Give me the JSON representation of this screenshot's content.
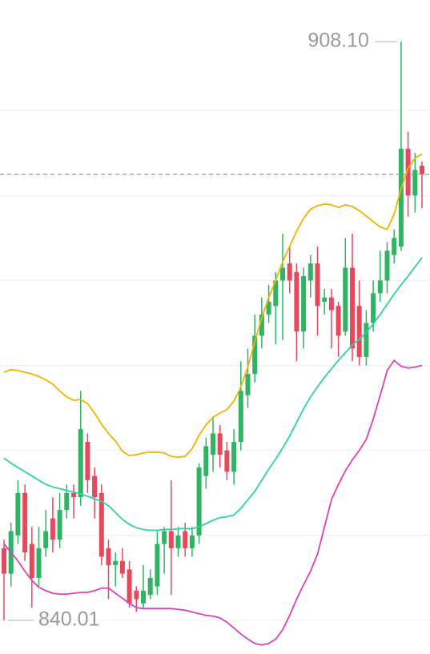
{
  "chart_data": {
    "type": "candlestick",
    "up_color": "#2fb463",
    "down_color": "#e8495a",
    "ylim": [
      836.05,
      913.0
    ],
    "gridlines": [
      840,
      850,
      860,
      870,
      880,
      890,
      900
    ],
    "open": [
      848.5,
      845.5,
      850,
      855,
      849,
      845,
      848.5,
      852,
      849.5,
      853,
      855,
      854.5,
      861,
      857,
      855,
      848.5,
      846.5,
      847,
      846,
      843.5,
      842,
      843,
      844,
      849,
      850.5,
      848.5,
      850.5,
      848.5,
      850,
      857,
      859.5,
      862,
      860,
      857.5,
      861,
      866.5,
      869,
      873.5,
      876,
      877,
      880,
      882,
      881,
      874,
      880,
      882,
      877.5,
      878,
      877,
      874,
      881.5,
      877,
      871,
      875,
      878.5,
      880,
      883,
      884,
      895.5,
      890,
      893.5
    ],
    "high": [
      849.5,
      851.5,
      856.5,
      856,
      851,
      851,
      853,
      854.5,
      855,
      856,
      856,
      867,
      862,
      858,
      856,
      849.5,
      848,
      848.5,
      847,
      844,
      846.5,
      846,
      850.5,
      851,
      856.5,
      851,
      851.5,
      851,
      858.5,
      861.5,
      864,
      863,
      861,
      862.5,
      870.5,
      872,
      876,
      878,
      879.5,
      881,
      885.5,
      884,
      882,
      881.5,
      883,
      884,
      879,
      879,
      877.5,
      885,
      885.5,
      880,
      876.5,
      880,
      883.5,
      884.5,
      886,
      908.1,
      897.5,
      895,
      894
    ],
    "low": [
      840.01,
      844,
      849,
      847,
      841.5,
      844,
      847.5,
      848,
      848.5,
      852,
      852,
      853.5,
      855,
      852,
      846.5,
      842.5,
      844,
      845,
      841.5,
      841,
      841.5,
      842.5,
      843,
      845.5,
      843,
      847.5,
      847.5,
      847.5,
      849,
      855.5,
      857.5,
      858,
      856.5,
      856,
      860,
      865,
      868,
      872,
      875,
      872.5,
      873,
      878.5,
      870.5,
      872,
      878,
      873.5,
      876,
      872,
      871,
      873.5,
      870.5,
      870,
      870,
      874,
      877.5,
      878.5,
      882,
      883.5,
      887.5,
      888,
      888.5
    ],
    "close": [
      845.5,
      850.5,
      855,
      848,
      845,
      848.5,
      850.5,
      849.5,
      853,
      855,
      854.5,
      862.5,
      856.5,
      854.5,
      847.5,
      846.5,
      847,
      845.5,
      842,
      842.5,
      843.5,
      845,
      849,
      850.5,
      848.5,
      850,
      848.5,
      850,
      858,
      860.5,
      862,
      859.5,
      857.5,
      861,
      867,
      869,
      873.5,
      876,
      877.5,
      880,
      881.5,
      880,
      874,
      880.5,
      882,
      877,
      878,
      876.5,
      873.5,
      881.5,
      872,
      871,
      875,
      878.5,
      880,
      883.5,
      885,
      895.5,
      890,
      893,
      892.5
    ],
    "overlays": [
      {
        "color": "#f0b400",
        "values": [
          869.2,
          869.5,
          869.4,
          869.2,
          869.0,
          868.7,
          868.3,
          867.8,
          867.0,
          866.3,
          865.9,
          866.0,
          865.5,
          864.4,
          863.1,
          862.0,
          861.1,
          859.9,
          859.4,
          859.5,
          859.7,
          859.8,
          859.8,
          859.7,
          859.3,
          859.2,
          859.3,
          860.2,
          861.8,
          863.0,
          863.9,
          864.4,
          864.8,
          865.8,
          867.5,
          869.8,
          872.8,
          875.6,
          878.0,
          880.0,
          882.2,
          884.0,
          885.8,
          887.3,
          888.4,
          888.8,
          889.0,
          888.9,
          888.6,
          888.9,
          888.7,
          888.2,
          887.6,
          886.9,
          886.3,
          886.0,
          887.8,
          890.8,
          893.2,
          894.4,
          894.9
        ]
      },
      {
        "color": "#2ed3a3",
        "values": [
          859.1,
          858.5,
          858.0,
          857.5,
          857.0,
          856.5,
          856.0,
          855.7,
          855.5,
          855.3,
          855.1,
          854.9,
          854.6,
          854.3,
          854.0,
          853.5,
          852.7,
          851.9,
          851.3,
          850.9,
          850.7,
          850.6,
          850.6,
          850.7,
          850.7,
          850.8,
          850.8,
          850.8,
          851.0,
          851.4,
          851.8,
          852.1,
          852.2,
          852.4,
          853.2,
          854.2,
          855.2,
          856.5,
          857.8,
          859.0,
          860.3,
          861.7,
          863.3,
          864.9,
          866.3,
          867.5,
          868.6,
          869.6,
          870.6,
          871.5,
          872.4,
          873.1,
          873.9,
          874.9,
          876.0,
          877.2,
          878.4,
          879.5,
          880.5,
          881.6,
          882.7
        ]
      },
      {
        "color": "#e040b8",
        "values": [
          849.0,
          848.0,
          847.0,
          845.8,
          844.7,
          843.9,
          843.5,
          843.2,
          843.1,
          843.1,
          843.2,
          843.3,
          843.3,
          843.5,
          843.8,
          843.8,
          843.2,
          842.6,
          842.0,
          841.5,
          841.4,
          841.4,
          841.4,
          841.4,
          841.4,
          841.3,
          841.2,
          841.0,
          840.8,
          840.6,
          840.5,
          840.3,
          839.8,
          839.1,
          838.4,
          837.8,
          837.3,
          837.1,
          837.3,
          837.8,
          838.9,
          840.6,
          842.5,
          844.2,
          845.8,
          847.8,
          851.0,
          854.2,
          856.0,
          857.6,
          858.9,
          860.0,
          861.3,
          863.7,
          866.5,
          869.4,
          870.6,
          869.9,
          869.7,
          869.8,
          870.0
        ]
      }
    ],
    "max_label": {
      "value": 908.1,
      "label": "908.10"
    },
    "min_label": {
      "value": 840.01,
      "label": "840.01"
    }
  }
}
